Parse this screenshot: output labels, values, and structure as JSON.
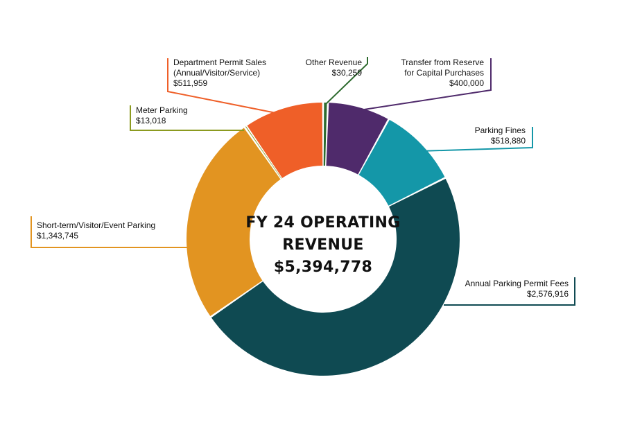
{
  "chart_data": {
    "type": "pie",
    "donut": true,
    "center_title_lines": [
      "FY 24 OPERATING",
      "REVENUE"
    ],
    "center_total": "$5,394,778",
    "series": [
      {
        "labels": [
          "Other Revenue"
        ],
        "value_label": "$30,259",
        "value": 30259,
        "color": "#2e6b2f"
      },
      {
        "labels": [
          "Transfer from Reserve",
          "for Capital Purchases"
        ],
        "value_label": "$400,000",
        "value": 400000,
        "color": "#4f2a6b"
      },
      {
        "labels": [
          "Parking Fines"
        ],
        "value_label": "$518,880",
        "value": 518880,
        "color": "#1497a8"
      },
      {
        "labels": [
          "Annual Parking Permit Fees"
        ],
        "value_label": "$2,576,916",
        "value": 2576916,
        "color": "#0f4a52"
      },
      {
        "labels": [
          "Short-term/Visitor/Event Parking"
        ],
        "value_label": "$1,343,745",
        "value": 1343745,
        "color": "#e29421"
      },
      {
        "labels": [
          "Meter Parking"
        ],
        "value_label": "$13,018",
        "value": 13018,
        "color": "#8b9a1f"
      },
      {
        "labels": [
          "Department Permit Sales",
          "(Annual/Visitor/Service)"
        ],
        "value_label": "$511,959",
        "value": 511959,
        "color": "#ef5f28"
      }
    ]
  }
}
